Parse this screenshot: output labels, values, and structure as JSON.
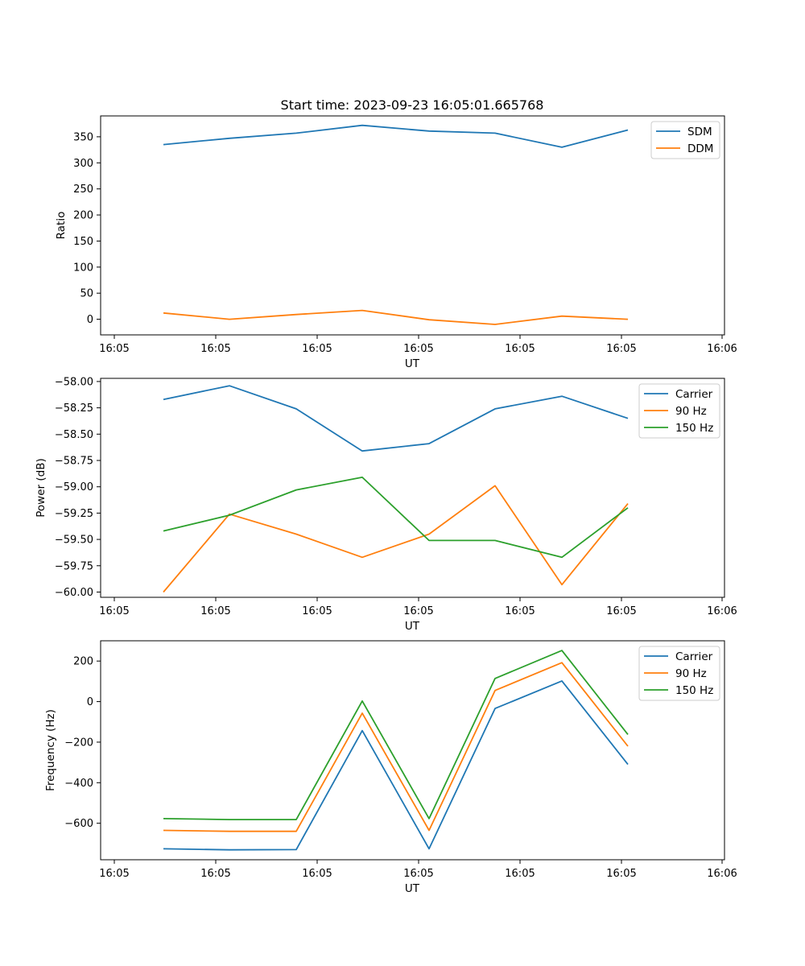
{
  "chart_data": [
    {
      "type": "line",
      "title": "Start time: 2023-09-23 16:05:01.665768",
      "xlabel": "UT",
      "ylabel": "Ratio",
      "x_ticks": [
        "16:05",
        "16:05",
        "16:05",
        "16:05",
        "16:05",
        "16:05",
        "16:06"
      ],
      "ylim": [
        -30,
        390
      ],
      "y_ticks": [
        0,
        50,
        100,
        150,
        200,
        250,
        300,
        350
      ],
      "legend_position": "upper-right",
      "series": [
        {
          "name": "SDM",
          "color": "#1f77b4",
          "values": [
            335,
            347,
            357,
            372,
            361,
            357,
            330,
            363
          ]
        },
        {
          "name": "DDM",
          "color": "#ff7f0e",
          "values": [
            12,
            0,
            9,
            17,
            -1,
            -10,
            6,
            0
          ]
        }
      ]
    },
    {
      "type": "line",
      "title": "",
      "xlabel": "UT",
      "ylabel": "Power (dB)",
      "x_ticks": [
        "16:05",
        "16:05",
        "16:05",
        "16:05",
        "16:05",
        "16:05",
        "16:06"
      ],
      "ylim": [
        -60.05,
        -57.97
      ],
      "y_ticks": [
        -58.0,
        -58.25,
        -58.5,
        -58.75,
        -59.0,
        -59.25,
        -59.5,
        -59.75,
        -60.0
      ],
      "y_tick_labels": [
        "−58.00",
        "−58.25",
        "−58.50",
        "−58.75",
        "−59.00",
        "−59.25",
        "−59.50",
        "−59.75",
        "−60.00"
      ],
      "legend_position": "upper-right",
      "series": [
        {
          "name": "Carrier",
          "color": "#1f77b4",
          "values": [
            -58.17,
            -58.04,
            -58.26,
            -58.66,
            -58.59,
            -58.26,
            -58.14,
            -58.35
          ]
        },
        {
          "name": "90 Hz",
          "color": "#ff7f0e",
          "values": [
            -60.0,
            -59.26,
            -59.45,
            -59.67,
            -59.45,
            -58.99,
            -59.93,
            -59.16
          ]
        },
        {
          "name": "150 Hz",
          "color": "#2ca02c",
          "values": [
            -59.42,
            -59.27,
            -59.03,
            -58.91,
            -59.51,
            -59.51,
            -59.67,
            -59.2
          ]
        }
      ]
    },
    {
      "type": "line",
      "title": "",
      "xlabel": "UT",
      "ylabel": "Frequency (Hz)",
      "x_ticks": [
        "16:05",
        "16:05",
        "16:05",
        "16:05",
        "16:05",
        "16:05",
        "16:06"
      ],
      "ylim": [
        -780,
        300
      ],
      "y_ticks": [
        200,
        0,
        -200,
        -400,
        -600
      ],
      "y_tick_labels": [
        "200",
        "0",
        "−200",
        "−400",
        "−600"
      ],
      "legend_position": "upper-right",
      "series": [
        {
          "name": "Carrier",
          "color": "#1f77b4",
          "values": [
            -726,
            -731,
            -730,
            -143,
            -726,
            -34,
            102,
            -310
          ]
        },
        {
          "name": "90 Hz",
          "color": "#ff7f0e",
          "values": [
            -635,
            -640,
            -640,
            -57,
            -635,
            55,
            192,
            -220
          ]
        },
        {
          "name": "150 Hz",
          "color": "#2ca02c",
          "values": [
            -577,
            -582,
            -582,
            3,
            -577,
            114,
            252,
            -162
          ]
        }
      ]
    }
  ]
}
